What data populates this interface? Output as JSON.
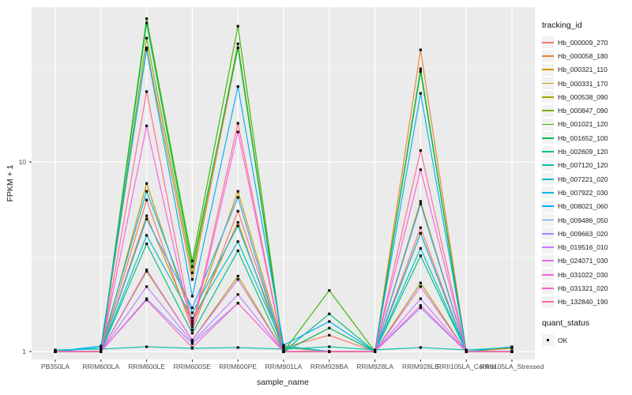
{
  "figure": {
    "x_axis_title": "sample_name",
    "y_axis_title": "FPKM + 1",
    "panel_bg": "#EBEBEB",
    "grid_color": "#FFFFFF",
    "point_color": "#111111",
    "y_ticks": [
      {
        "label": "1",
        "value": 1
      },
      {
        "label": "10",
        "value": 10
      }
    ]
  },
  "legend": {
    "tracking_title": "tracking_id",
    "quant_title": "quant_status",
    "quant_items": [
      {
        "label": "OK",
        "shape": "black-square"
      }
    ]
  },
  "chart_data": {
    "type": "line",
    "title": "",
    "xlabel": "sample_name",
    "ylabel": "FPKM + 1",
    "scale_y": "log10",
    "ylim": [
      1,
      65
    ],
    "grid": true,
    "legend_position": "right",
    "categories": [
      "PB350LA",
      "RRIM600LA",
      "RRIM600LE",
      "RRIM600SE",
      "RRIM600PE",
      "RRIM901LA",
      "RRIM928BA",
      "RRIM928LA",
      "RRIM928LE",
      "RRII105LA_Control",
      "RRII105LA_Stressed"
    ],
    "series": [
      {
        "name": "Hb_000009_270",
        "color": "#F8766D",
        "values": [
          1,
          1,
          6.3,
          1.3,
          5.5,
          1.05,
          1.22,
          1,
          4.5,
          1,
          1
        ]
      },
      {
        "name": "Hb_000058_180",
        "color": "#EA8331",
        "values": [
          1,
          1,
          40,
          2.4,
          40,
          1,
          1,
          1,
          39,
          1,
          1
        ]
      },
      {
        "name": "Hb_000321_110",
        "color": "#D89000",
        "values": [
          1,
          1,
          5.2,
          1.4,
          4.8,
          1,
          1,
          1,
          4.2,
          1,
          1.04
        ]
      },
      {
        "name": "Hb_000331_170",
        "color": "#C09B00",
        "values": [
          1,
          1,
          7.7,
          1.45,
          7.0,
          1.05,
          1,
          1,
          6.2,
          1,
          1.05
        ]
      },
      {
        "name": "Hb_000538_090",
        "color": "#A3A500",
        "values": [
          1,
          1,
          2.65,
          1.15,
          2.5,
          1,
          1,
          1,
          2.3,
          1,
          1
        ]
      },
      {
        "name": "Hb_000847_090",
        "color": "#7CAE00",
        "values": [
          1,
          1,
          45,
          2.6,
          42,
          1,
          1,
          1,
          30,
          1,
          1
        ]
      },
      {
        "name": "Hb_001021_120",
        "color": "#39B600",
        "values": [
          1,
          1,
          57,
          3.0,
          52,
          1,
          2.1,
          1,
          31,
          1,
          1
        ]
      },
      {
        "name": "Hb_001652_100",
        "color": "#00BB4E",
        "values": [
          1,
          1,
          54,
          2.8,
          40,
          1,
          1.33,
          1,
          30,
          1,
          1
        ]
      },
      {
        "name": "Hb_002609_120",
        "color": "#00BF7D",
        "values": [
          1,
          1,
          3.7,
          1.25,
          3.4,
          1,
          1.58,
          1,
          3.2,
          1,
          1
        ]
      },
      {
        "name": "Hb_007120_120",
        "color": "#00C1A3",
        "values": [
          1.02,
          1.03,
          1.06,
          1.04,
          1.05,
          1.03,
          1.06,
          1.02,
          1.05,
          1.02,
          1.05
        ]
      },
      {
        "name": "Hb_007221_020",
        "color": "#00BFC4",
        "values": [
          1,
          1,
          4.1,
          1.5,
          3.8,
          1.07,
          1,
          1,
          3.5,
          1,
          1
        ]
      },
      {
        "name": "Hb_007922_030",
        "color": "#00BAE0",
        "values": [
          1,
          1.05,
          7.0,
          1.6,
          4.6,
          1.07,
          1,
          1,
          4.2,
          1,
          1
        ]
      },
      {
        "name": "Hb_008021_060",
        "color": "#00B0F6",
        "values": [
          1,
          1.07,
          39,
          1.96,
          25,
          1.08,
          1.44,
          1,
          23,
          1,
          1.06
        ]
      },
      {
        "name": "Hb_009486_050",
        "color": "#35A2FF",
        "values": [
          1,
          1,
          5.0,
          1.7,
          6.5,
          1,
          1,
          1,
          6.0,
          1,
          1
        ]
      },
      {
        "name": "Hb_009663_020",
        "color": "#9590FF",
        "values": [
          1,
          1,
          1.9,
          1.1,
          1.8,
          1,
          1,
          1,
          1.7,
          1,
          1
        ]
      },
      {
        "name": "Hb_019516_010",
        "color": "#C77CFF",
        "values": [
          1,
          1,
          2.2,
          1.12,
          2.0,
          1,
          1,
          1,
          1.9,
          1,
          1
        ]
      },
      {
        "name": "Hb_024071_030",
        "color": "#E76BF3",
        "values": [
          1,
          1,
          2.7,
          1.15,
          2.4,
          1,
          1,
          1,
          2.2,
          1,
          1
        ]
      },
      {
        "name": "Hb_031022_030",
        "color": "#FA62DB",
        "values": [
          1,
          1,
          15.5,
          1.3,
          14.4,
          1,
          1,
          1,
          9.1,
          1,
          1
        ]
      },
      {
        "name": "Hb_031321_020",
        "color": "#FF61CC",
        "values": [
          1,
          1,
          1.87,
          1.05,
          1.8,
          1,
          1,
          1,
          1.75,
          1,
          1
        ]
      },
      {
        "name": "Hb_132840_190",
        "color": "#FF6A98",
        "values": [
          1,
          1,
          23.5,
          1.35,
          16,
          1,
          1,
          1,
          11.5,
          1,
          1
        ]
      }
    ]
  }
}
